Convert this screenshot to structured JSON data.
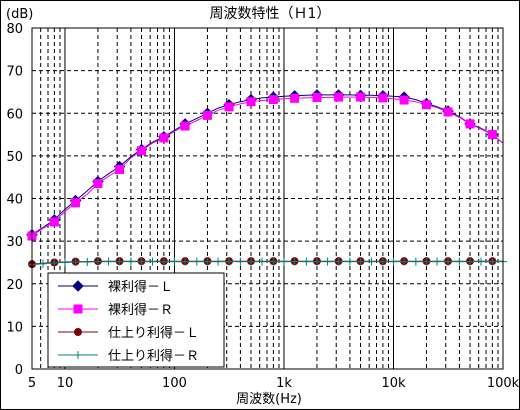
{
  "chart_data": {
    "type": "line",
    "title": "周波数特性（Ｈ1）",
    "xlabel": "周波数(Hz)",
    "ylabel_unit": "(dB)",
    "x_scale": "log",
    "xlim": [
      5,
      100000
    ],
    "ylim": [
      0,
      80
    ],
    "y_ticks": [
      "0",
      "10",
      "20",
      "30",
      "40",
      "50",
      "60",
      "70",
      "80"
    ],
    "x_tick_labels": [
      {
        "value": 5,
        "label": "5"
      },
      {
        "value": 10,
        "label": "10"
      },
      {
        "value": 100,
        "label": "100"
      },
      {
        "value": 1000,
        "label": "1k"
      },
      {
        "value": 10000,
        "label": "10k"
      },
      {
        "value": 100000,
        "label": "100k"
      }
    ],
    "grid": true,
    "legend_position": "bottom-left",
    "x": [
      5,
      6.3,
      8,
      10,
      12.5,
      16,
      20,
      25,
      31.5,
      40,
      50,
      63,
      80,
      100,
      125,
      160,
      200,
      250,
      315,
      400,
      500,
      630,
      800,
      1000,
      1250,
      1600,
      2000,
      2500,
      3150,
      4000,
      5000,
      6300,
      8000,
      10000,
      12500,
      16000,
      20000,
      25000,
      31500,
      40000,
      50000,
      63000,
      80000,
      100000
    ],
    "series": [
      {
        "name": "裸利得－Ｌ",
        "color": "#000080",
        "marker": "diamond",
        "marker_every": 2,
        "values": [
          31.5,
          33.2,
          35.0,
          37.5,
          39.5,
          41.8,
          44.0,
          45.8,
          47.5,
          49.8,
          51.5,
          53.2,
          54.5,
          56.0,
          57.5,
          58.8,
          60.0,
          61.2,
          62.0,
          62.7,
          63.2,
          63.6,
          63.8,
          64.0,
          64.1,
          64.2,
          64.3,
          64.3,
          64.3,
          64.3,
          64.2,
          64.2,
          64.1,
          64.0,
          63.8,
          63.2,
          62.3,
          61.5,
          60.5,
          59.2,
          57.5,
          56.5,
          55.0,
          53.0
        ]
      },
      {
        "name": "裸利得－Ｒ",
        "color": "#ff00ff",
        "marker": "square",
        "marker_every": 2,
        "values": [
          31.2,
          33.0,
          34.5,
          37.0,
          39.0,
          41.0,
          43.5,
          45.2,
          46.8,
          49.5,
          51.2,
          53.0,
          54.2,
          55.8,
          57.0,
          58.3,
          59.5,
          60.7,
          61.5,
          62.2,
          62.7,
          63.0,
          63.2,
          63.4,
          63.5,
          63.6,
          63.7,
          63.7,
          63.8,
          63.8,
          63.8,
          63.7,
          63.6,
          63.4,
          63.1,
          62.7,
          62.0,
          61.3,
          60.3,
          59.0,
          57.5,
          56.3,
          55.0,
          53.0
        ]
      },
      {
        "name": "仕上り利得－Ｌ",
        "color": "#800000",
        "marker": "circle",
        "marker_every": 2,
        "values": [
          24.6,
          24.8,
          25.0,
          25.1,
          25.2,
          25.2,
          25.3,
          25.3,
          25.3,
          25.3,
          25.3,
          25.3,
          25.3,
          25.3,
          25.3,
          25.3,
          25.3,
          25.3,
          25.3,
          25.3,
          25.3,
          25.3,
          25.3,
          25.3,
          25.3,
          25.3,
          25.3,
          25.3,
          25.3,
          25.3,
          25.3,
          25.3,
          25.3,
          25.3,
          25.3,
          25.3,
          25.3,
          25.3,
          25.3,
          25.3,
          25.3,
          25.3,
          25.3,
          25.3
        ]
      },
      {
        "name": "仕上り利得－Ｒ",
        "color": "#008080",
        "marker": "plus",
        "marker_every": 1,
        "values": [
          24.5,
          24.7,
          24.9,
          25.0,
          25.1,
          25.1,
          25.2,
          25.2,
          25.2,
          25.2,
          25.2,
          25.2,
          25.2,
          25.2,
          25.2,
          25.2,
          25.2,
          25.2,
          25.2,
          25.2,
          25.2,
          25.2,
          25.2,
          25.2,
          25.2,
          25.2,
          25.2,
          25.2,
          25.2,
          25.2,
          25.2,
          25.2,
          25.2,
          25.2,
          25.2,
          25.2,
          25.2,
          25.2,
          25.2,
          25.2,
          25.2,
          25.2,
          25.2,
          25.2
        ]
      }
    ]
  }
}
